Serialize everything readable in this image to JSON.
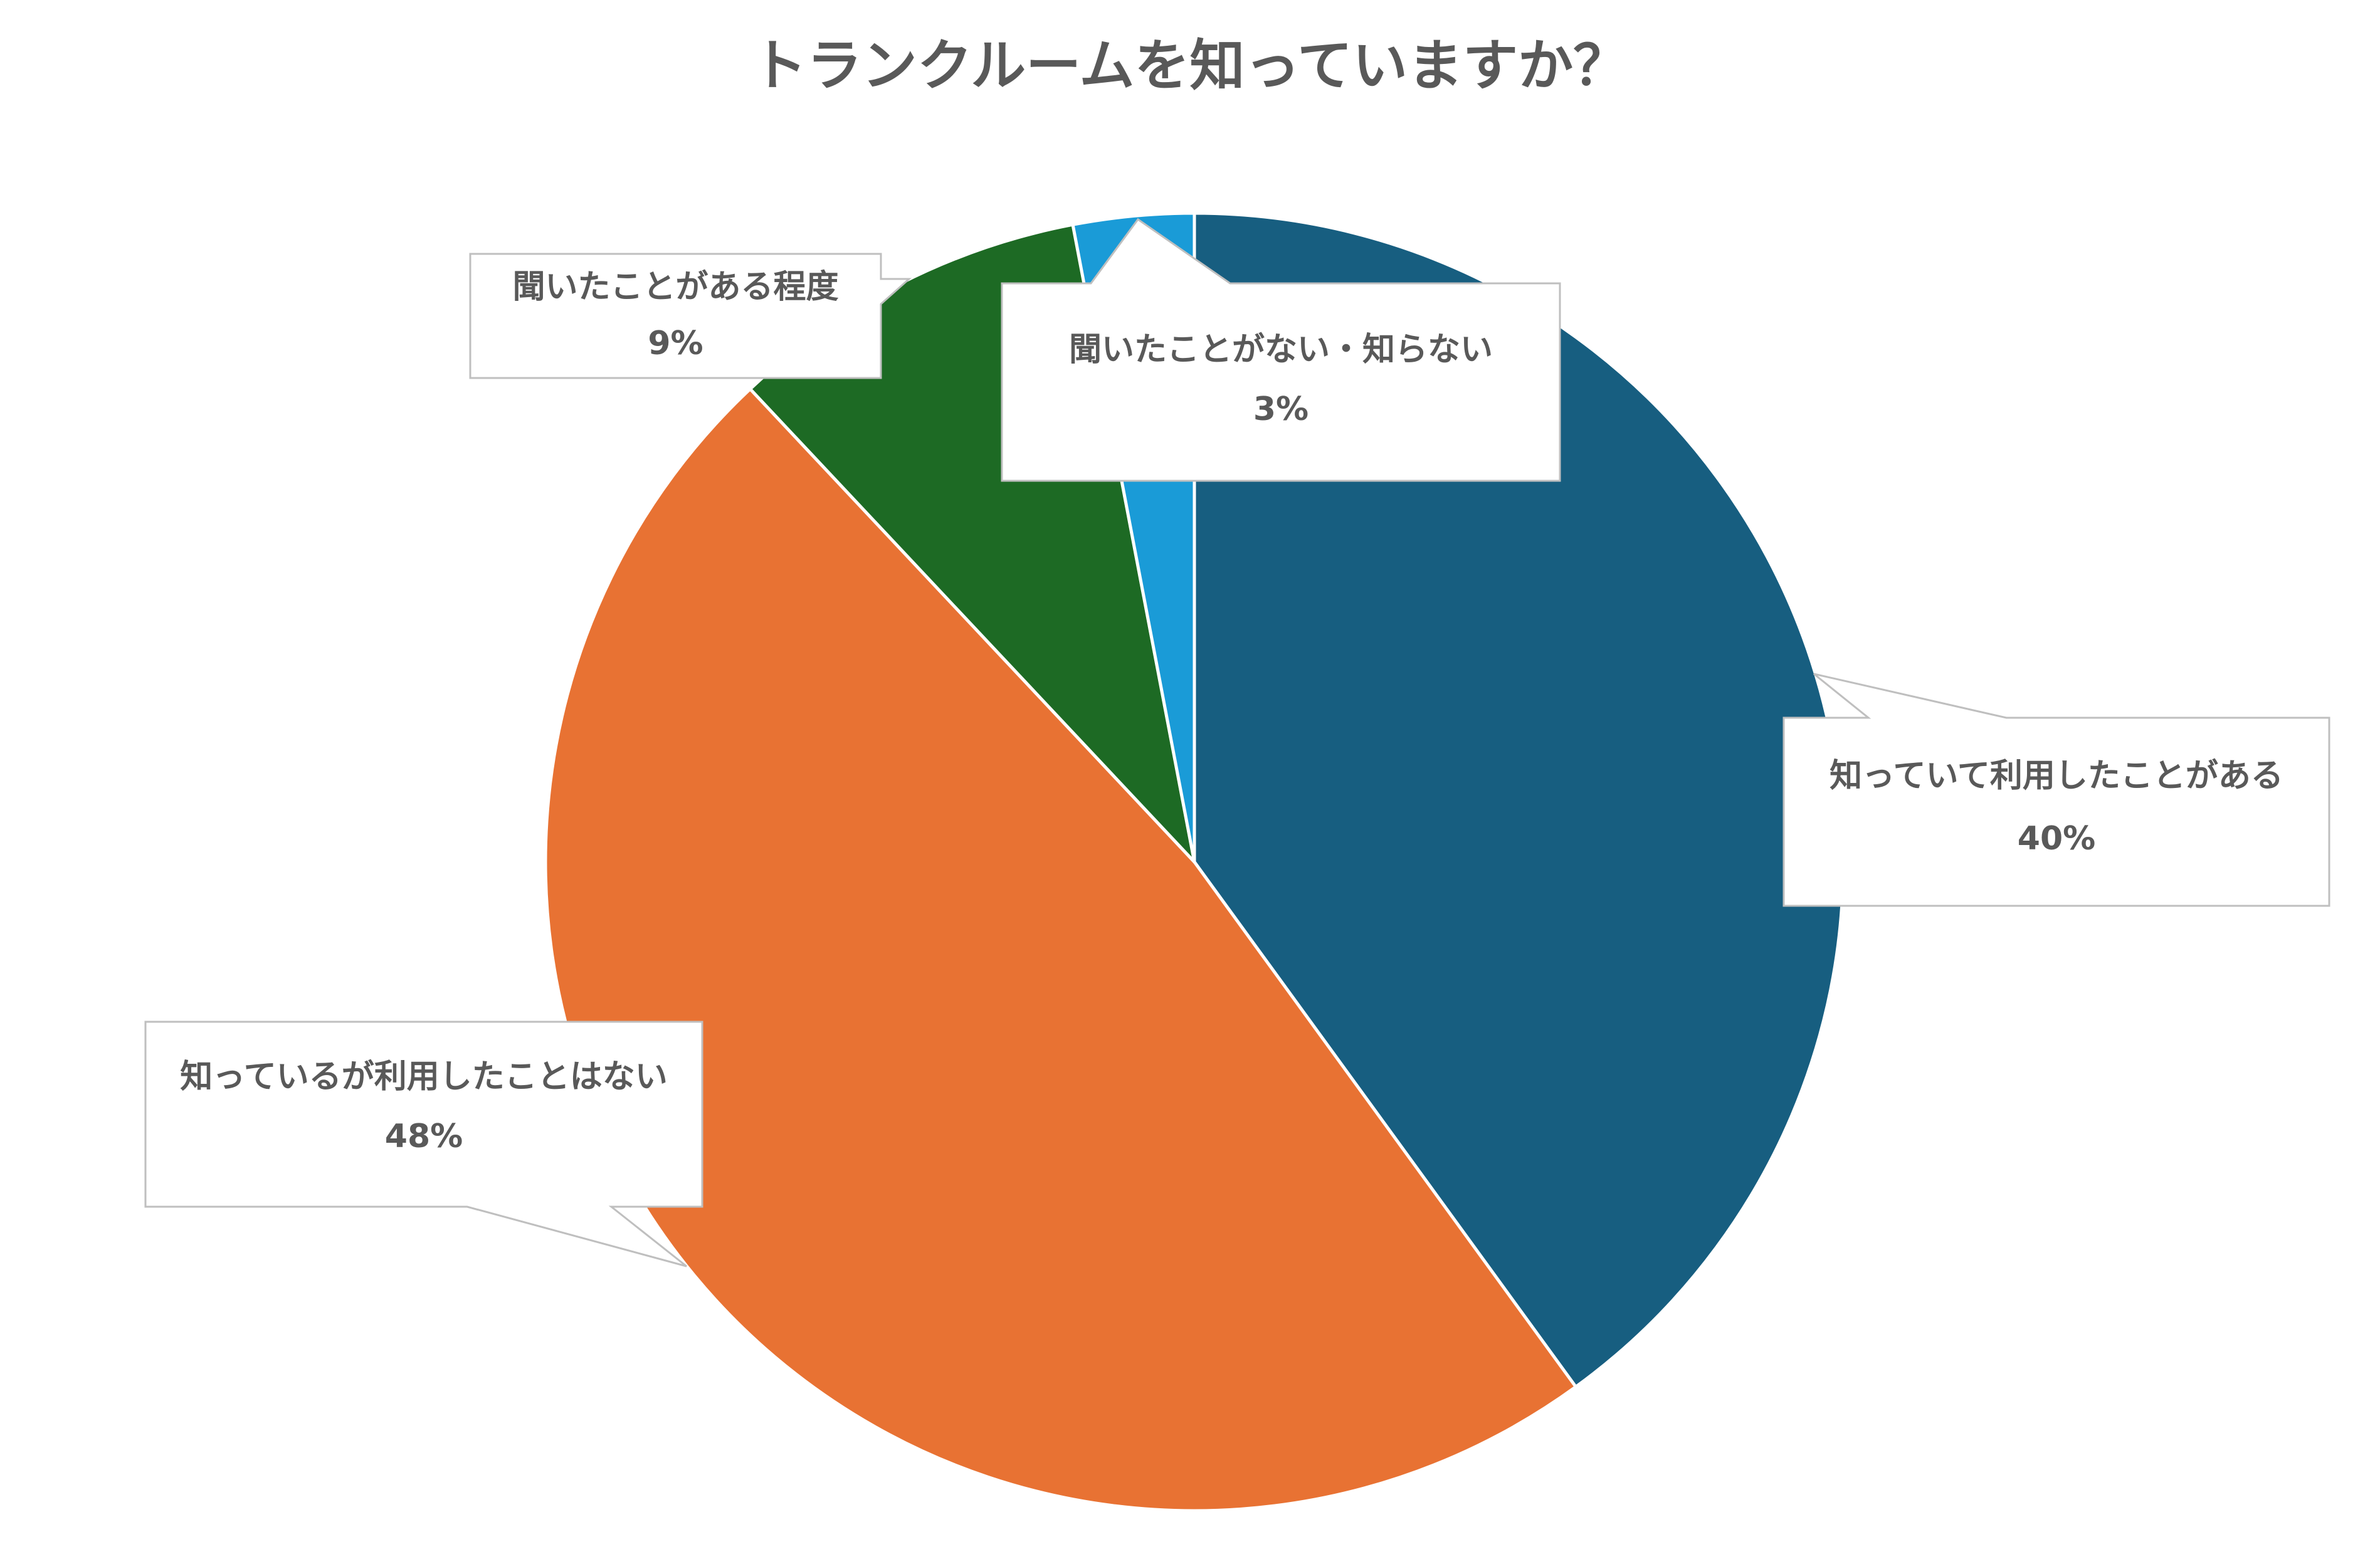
{
  "chart_data": {
    "type": "pie",
    "title": "トランクルームを知っていますか？",
    "start": "12 o'clock, clockwise",
    "slices": [
      {
        "label": "知っていて利用したことがある",
        "value": 40,
        "value_label": "40%",
        "color": "#175E80"
      },
      {
        "label": "知っているが利用したことはない",
        "value": 48,
        "value_label": "48%",
        "color": "#E87233"
      },
      {
        "label": "聞いたことがある程度",
        "value": 9,
        "value_label": "9%",
        "color": "#1D6A24"
      },
      {
        "label": "聞いたことがない・知らない",
        "value": 3,
        "value_label": "3%",
        "color": "#1A9BD7"
      }
    ]
  },
  "colors": {
    "title": "#595959",
    "label_text": "#595959",
    "callout_border": "#BFBFBF",
    "slice_border": "#FFFFFF"
  }
}
